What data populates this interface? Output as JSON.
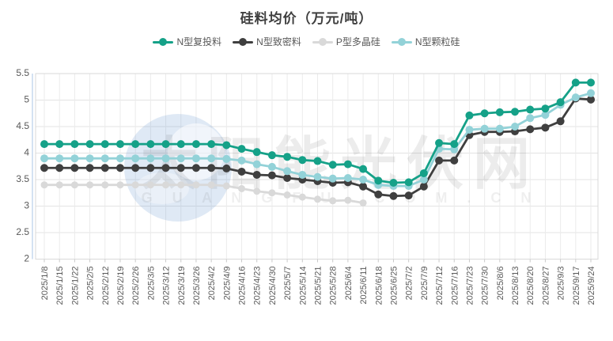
{
  "page": {
    "background": "#ffffff"
  },
  "chart": {
    "title": "硅料均价（万元/吨）"
  },
  "watermark": {
    "main_text": "太阳能光伏网",
    "sub_text": "G U A N G F U . C O M . C N",
    "logo_color": "#6f9bd2"
  },
  "axis": {
    "y_labels": [
      "5.5",
      "5",
      "4.5",
      "4",
      "3.5",
      "3",
      "2.5",
      "2"
    ]
  },
  "chart_data": {
    "type": "line",
    "title": "硅料均价（万元/吨）",
    "legend_position": "top",
    "grid": true,
    "ylim": [
      2,
      5.5
    ],
    "y_tick_step": 0.5,
    "x_labels": [
      "2025/1/8",
      "2025/1/15",
      "2025/1/22",
      "2025/2/5",
      "2025/2/12",
      "2025/2/19",
      "2025/2/26",
      "2025/3/5",
      "2025/3/12",
      "2025/3/19",
      "2025/3/26",
      "2025/4/2",
      "2025/4/9",
      "2025/4/16",
      "2025/4/23",
      "2025/4/30",
      "2025/5/7",
      "2025/5/14",
      "2025/5/21",
      "2025/5/28",
      "2025/6/4",
      "2025/6/11",
      "2025/6/18",
      "2025/6/25",
      "2025/7/2",
      "2025/7/9",
      "2025/7/12",
      "2025/7/16",
      "2025/7/23",
      "2025/7/30",
      "2025/8/6",
      "2025/8/13",
      "2025/8/20",
      "2025/8/27",
      "2025/9/3",
      "2025/9/17",
      "2025/9/24"
    ],
    "series": [
      {
        "name": "N型复投料",
        "color": "#15a188",
        "values": [
          4.17,
          4.17,
          4.17,
          4.17,
          4.17,
          4.17,
          4.17,
          4.17,
          4.17,
          4.17,
          4.17,
          4.17,
          4.15,
          4.08,
          4.02,
          3.96,
          3.93,
          3.87,
          3.85,
          3.78,
          3.79,
          3.7,
          3.48,
          3.44,
          3.45,
          3.62,
          4.19,
          4.17,
          4.71,
          4.75,
          4.77,
          4.78,
          4.82,
          4.84,
          4.96,
          5.33,
          5.33
        ]
      },
      {
        "name": "N型致密料",
        "color": "#3f3f3f",
        "values": [
          3.72,
          3.72,
          3.72,
          3.72,
          3.72,
          3.72,
          3.72,
          3.72,
          3.72,
          3.72,
          3.72,
          3.72,
          3.71,
          3.65,
          3.59,
          3.58,
          3.53,
          3.5,
          3.47,
          3.44,
          3.45,
          3.37,
          3.22,
          3.19,
          3.2,
          3.37,
          3.86,
          3.86,
          4.34,
          4.4,
          4.4,
          4.41,
          4.45,
          4.48,
          4.6,
          5.03,
          5.01
        ]
      },
      {
        "name": "P型多晶硅",
        "color": "#d9d9d9",
        "values": [
          3.4,
          3.4,
          3.4,
          3.4,
          3.4,
          3.4,
          3.4,
          3.4,
          3.4,
          3.4,
          3.4,
          3.4,
          3.38,
          3.33,
          3.28,
          3.25,
          3.21,
          3.17,
          3.13,
          3.1,
          3.11,
          3.06,
          null,
          null,
          null,
          null,
          null,
          null,
          null,
          null,
          null,
          null,
          null,
          null,
          null,
          null,
          null
        ]
      },
      {
        "name": "N型颗粒硅",
        "color": "#93d2d8",
        "values": [
          3.9,
          3.9,
          3.9,
          3.9,
          3.9,
          3.9,
          3.9,
          3.9,
          3.9,
          3.9,
          3.9,
          3.9,
          3.89,
          3.86,
          3.79,
          3.74,
          3.66,
          3.59,
          3.55,
          3.52,
          3.53,
          3.5,
          3.4,
          3.38,
          3.38,
          3.5,
          4.08,
          4.07,
          4.44,
          4.46,
          4.46,
          4.5,
          4.66,
          4.72,
          4.91,
          5.05,
          5.13
        ]
      }
    ]
  }
}
